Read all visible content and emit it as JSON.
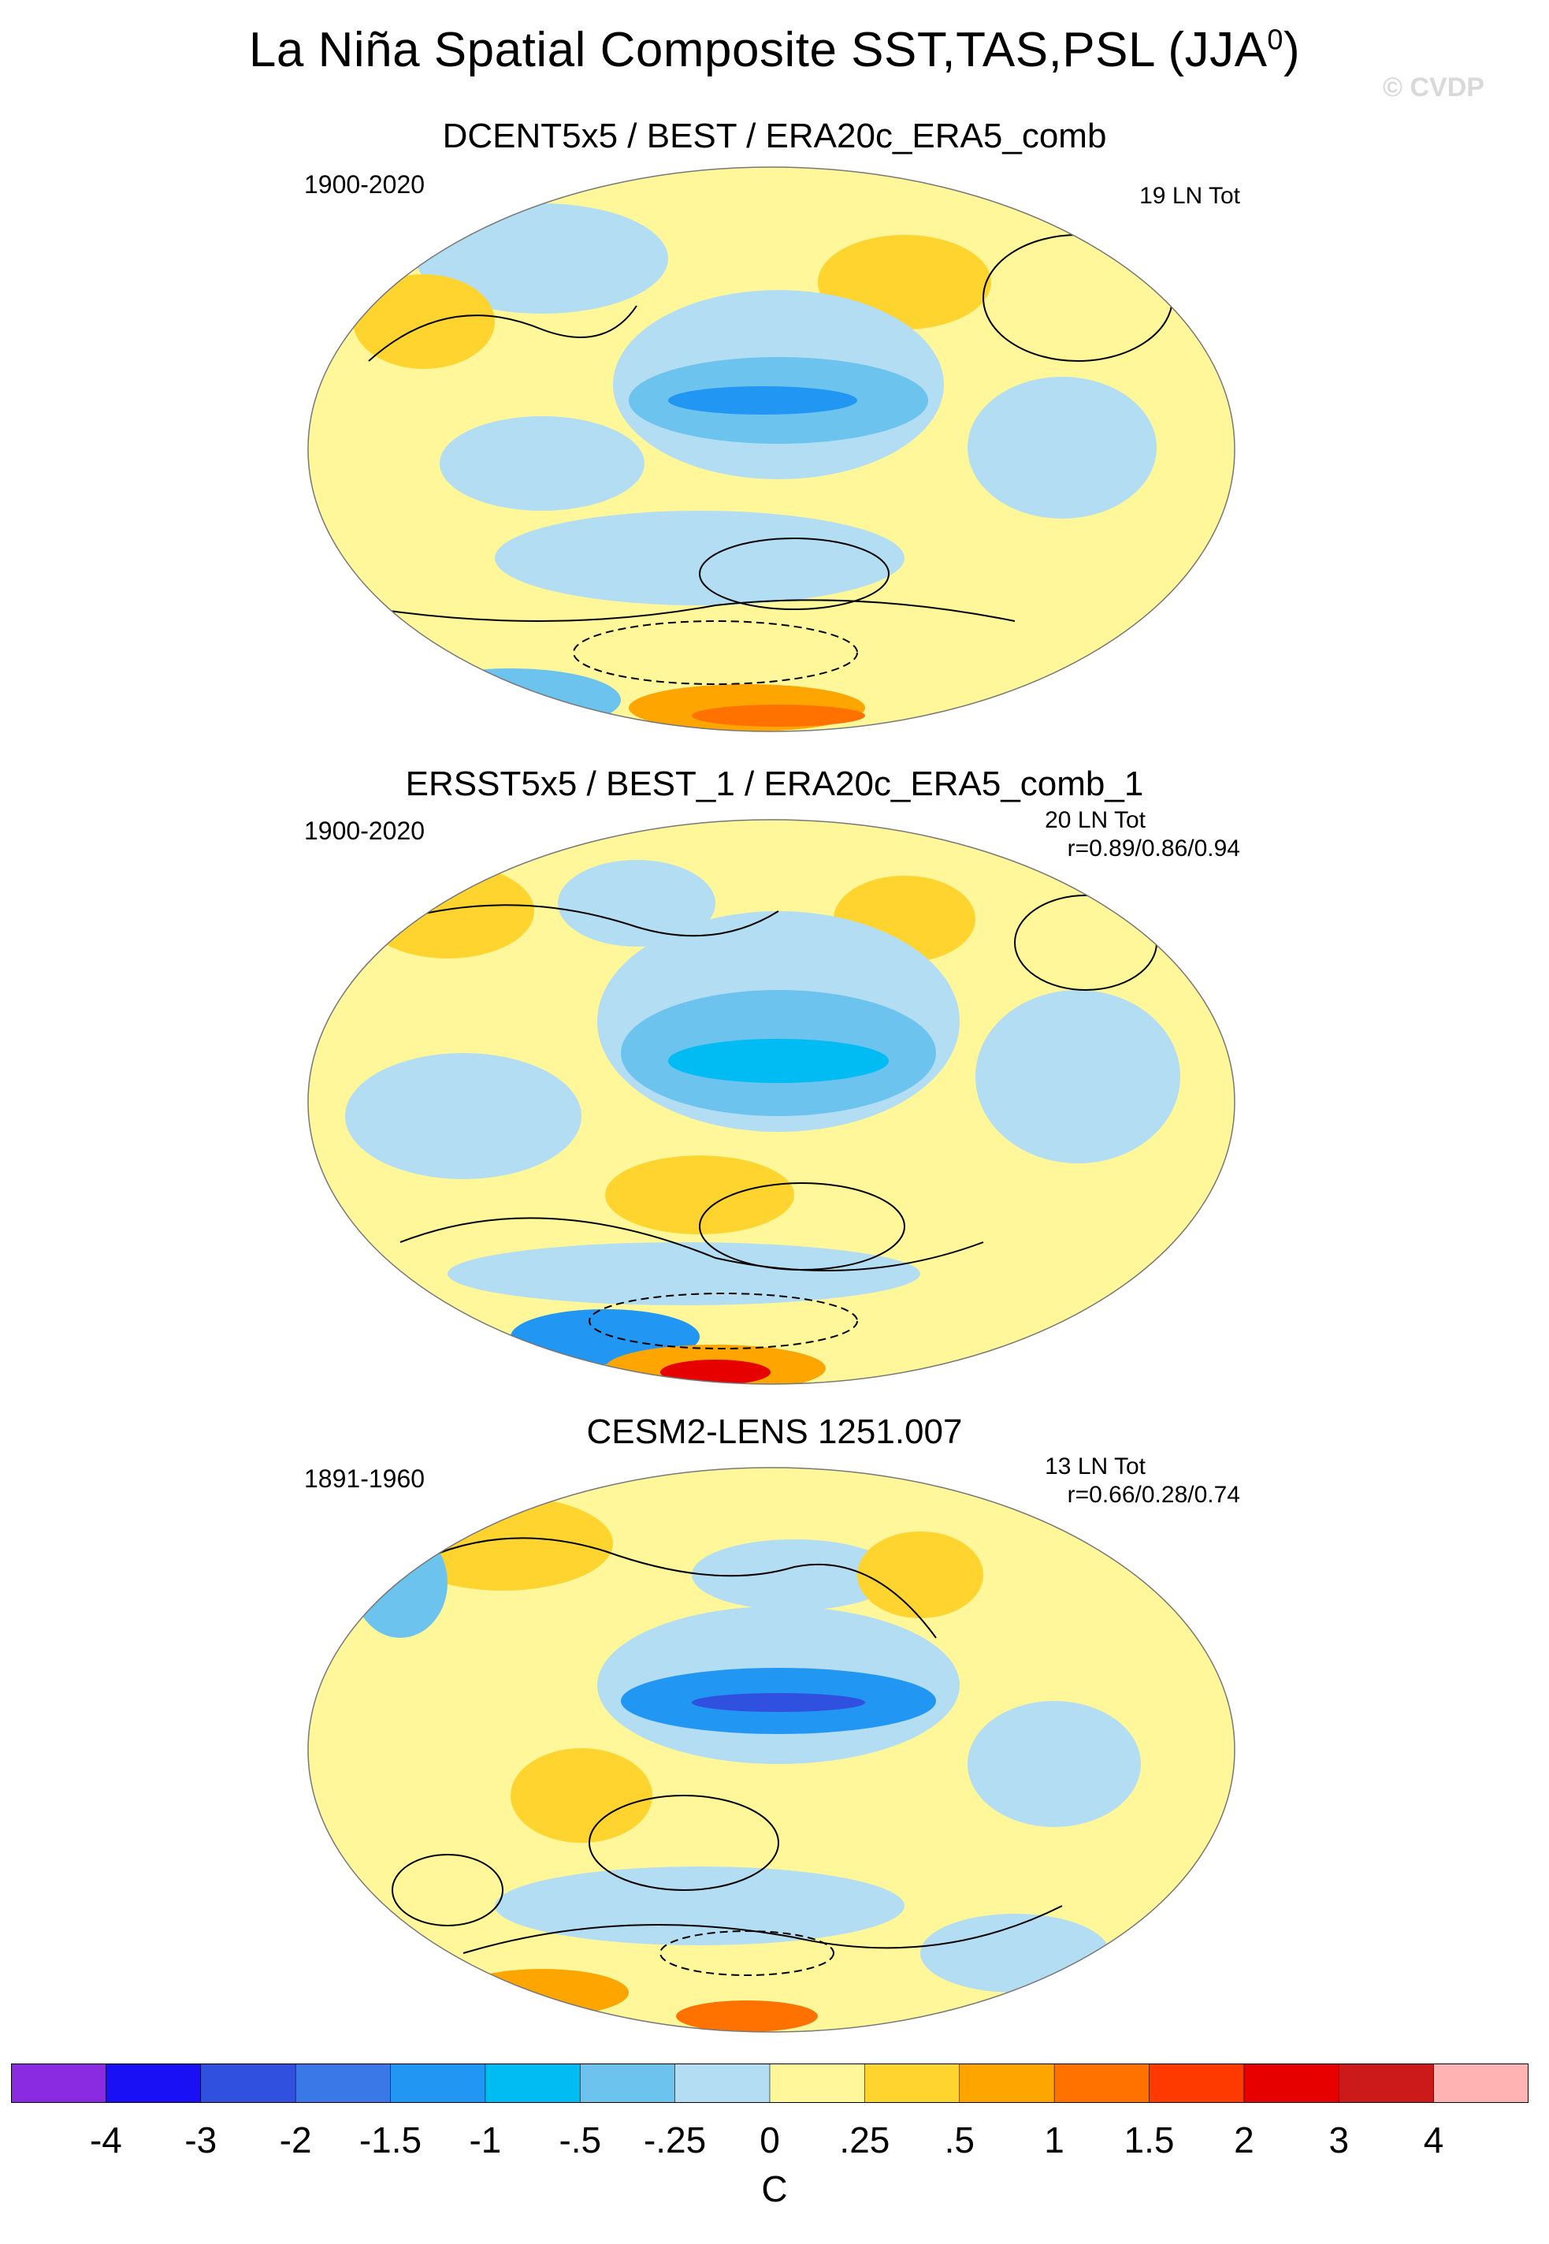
{
  "title": {
    "text": "La Niña Spatial Composite SST,TAS,PSL (JJA",
    "superscript": "0",
    "close": ")"
  },
  "copyright": "© CVDP",
  "panels": [
    {
      "title": "DCENT5x5 / BEST / ERA20c_ERA5_comb",
      "period": "1900-2020",
      "count": "19 LN Tot",
      "correlation": ""
    },
    {
      "title": "ERSST5x5 / BEST_1 / ERA20c_ERA5_comb_1",
      "period": "1900-2020",
      "count": "20 LN Tot",
      "correlation": "r=0.89/0.86/0.94"
    },
    {
      "title": "CESM2-LENS 1251.007",
      "period": "1891-1960",
      "count": "13 LN Tot",
      "correlation": "r=0.66/0.28/0.74"
    }
  ],
  "colorbar": {
    "colors": [
      "#8a2be2",
      "#1a10f5",
      "#3050e0",
      "#3a78e8",
      "#2196f3",
      "#00bcf2",
      "#6cc3ee",
      "#b3ddf2",
      "#fff799",
      "#ffd42f",
      "#ffa500",
      "#ff7200",
      "#ff3a00",
      "#e60000",
      "#cc1a1a",
      "#ffb3b3"
    ],
    "labels": [
      "-4",
      "-3",
      "-2",
      "-1.5",
      "-1",
      "-.5",
      "-.25",
      "0",
      ".25",
      ".5",
      "1",
      "1.5",
      "2",
      "3",
      "4"
    ],
    "units": "C"
  }
}
